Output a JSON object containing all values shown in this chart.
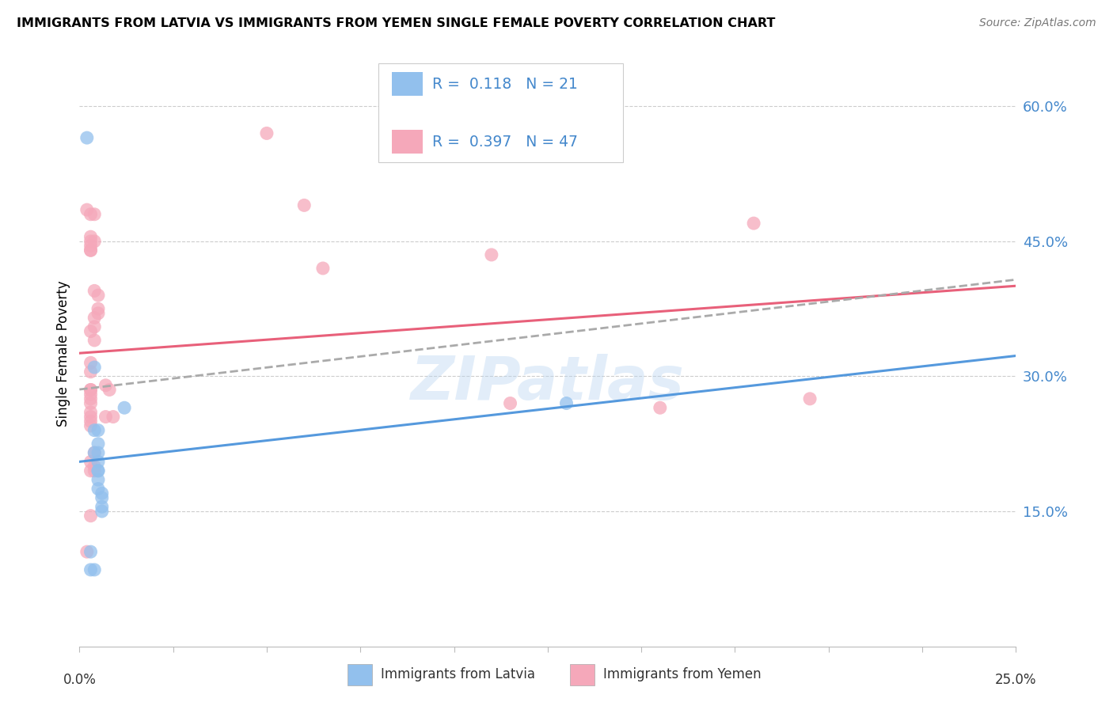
{
  "title": "IMMIGRANTS FROM LATVIA VS IMMIGRANTS FROM YEMEN SINGLE FEMALE POVERTY CORRELATION CHART",
  "source": "Source: ZipAtlas.com",
  "ylabel": "Single Female Poverty",
  "right_yticks": [
    "15.0%",
    "30.0%",
    "45.0%",
    "60.0%"
  ],
  "right_ytick_vals": [
    0.15,
    0.3,
    0.45,
    0.6
  ],
  "legend_label1": "Immigrants from Latvia",
  "legend_label2": "Immigrants from Yemen",
  "R_latvia": 0.118,
  "N_latvia": 21,
  "R_yemen": 0.397,
  "N_yemen": 47,
  "xlim": [
    0.0,
    0.25
  ],
  "ylim": [
    0.0,
    0.65
  ],
  "color_latvia": "#92c0ed",
  "color_yemen": "#f5a8ba",
  "line_color_latvia": "#5599dd",
  "line_color_yemen": "#e8607a",
  "line_color_dashed": "#aaaaaa",
  "watermark": "ZIPatlas",
  "latvia_points": [
    [
      0.002,
      0.565
    ],
    [
      0.003,
      0.105
    ],
    [
      0.003,
      0.085
    ],
    [
      0.004,
      0.31
    ],
    [
      0.004,
      0.085
    ],
    [
      0.004,
      0.215
    ],
    [
      0.004,
      0.24
    ],
    [
      0.005,
      0.24
    ],
    [
      0.005,
      0.225
    ],
    [
      0.005,
      0.215
    ],
    [
      0.005,
      0.205
    ],
    [
      0.005,
      0.195
    ],
    [
      0.005,
      0.195
    ],
    [
      0.005,
      0.185
    ],
    [
      0.005,
      0.175
    ],
    [
      0.006,
      0.17
    ],
    [
      0.006,
      0.165
    ],
    [
      0.006,
      0.155
    ],
    [
      0.006,
      0.15
    ],
    [
      0.012,
      0.265
    ],
    [
      0.13,
      0.27
    ]
  ],
  "yemen_points": [
    [
      0.002,
      0.485
    ],
    [
      0.002,
      0.105
    ],
    [
      0.003,
      0.48
    ],
    [
      0.003,
      0.455
    ],
    [
      0.003,
      0.45
    ],
    [
      0.003,
      0.445
    ],
    [
      0.003,
      0.44
    ],
    [
      0.003,
      0.44
    ],
    [
      0.003,
      0.35
    ],
    [
      0.003,
      0.315
    ],
    [
      0.003,
      0.305
    ],
    [
      0.003,
      0.285
    ],
    [
      0.003,
      0.285
    ],
    [
      0.003,
      0.28
    ],
    [
      0.003,
      0.275
    ],
    [
      0.003,
      0.27
    ],
    [
      0.003,
      0.26
    ],
    [
      0.003,
      0.255
    ],
    [
      0.003,
      0.25
    ],
    [
      0.003,
      0.245
    ],
    [
      0.003,
      0.205
    ],
    [
      0.003,
      0.195
    ],
    [
      0.003,
      0.145
    ],
    [
      0.004,
      0.48
    ],
    [
      0.004,
      0.45
    ],
    [
      0.004,
      0.395
    ],
    [
      0.004,
      0.365
    ],
    [
      0.004,
      0.355
    ],
    [
      0.004,
      0.34
    ],
    [
      0.004,
      0.215
    ],
    [
      0.004,
      0.2
    ],
    [
      0.004,
      0.195
    ],
    [
      0.005,
      0.39
    ],
    [
      0.005,
      0.375
    ],
    [
      0.005,
      0.37
    ],
    [
      0.007,
      0.29
    ],
    [
      0.007,
      0.255
    ],
    [
      0.008,
      0.285
    ],
    [
      0.009,
      0.255
    ],
    [
      0.05,
      0.57
    ],
    [
      0.06,
      0.49
    ],
    [
      0.065,
      0.42
    ],
    [
      0.11,
      0.435
    ],
    [
      0.115,
      0.27
    ],
    [
      0.155,
      0.265
    ],
    [
      0.18,
      0.47
    ],
    [
      0.195,
      0.275
    ]
  ]
}
